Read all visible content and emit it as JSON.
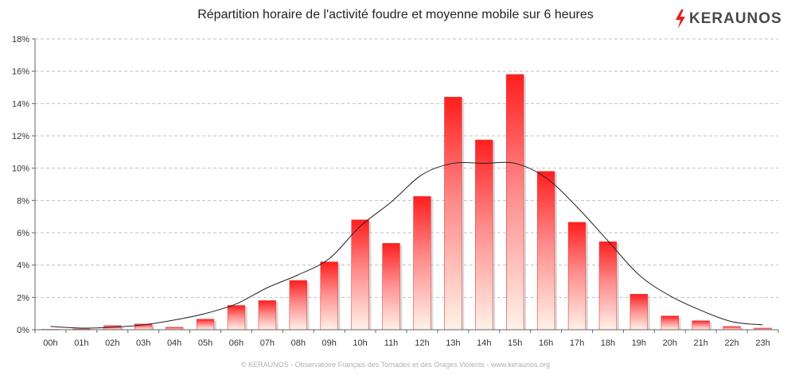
{
  "chart_data": {
    "type": "bar",
    "title": "Répartition horaire de l'activité foudre et moyenne mobile sur 6 heures",
    "categories": [
      "00h",
      "01h",
      "02h",
      "03h",
      "04h",
      "05h",
      "06h",
      "07h",
      "08h",
      "09h",
      "10h",
      "11h",
      "12h",
      "13h",
      "14h",
      "15h",
      "16h",
      "17h",
      "18h",
      "19h",
      "20h",
      "21h",
      "22h",
      "23h"
    ],
    "series": [
      {
        "type": "bar",
        "values": [
          0.02,
          0.05,
          0.25,
          0.35,
          0.15,
          0.65,
          1.5,
          1.8,
          3.05,
          4.2,
          6.8,
          5.35,
          8.25,
          14.4,
          11.75,
          15.8,
          9.8,
          6.65,
          5.45,
          2.2,
          0.85,
          0.55,
          0.2,
          0.1
        ]
      },
      {
        "type": "line",
        "values": [
          0.2,
          0.1,
          0.15,
          0.3,
          0.6,
          1.0,
          1.6,
          2.6,
          3.4,
          4.4,
          6.4,
          7.9,
          9.6,
          10.3,
          10.3,
          10.3,
          9.4,
          7.6,
          5.5,
          3.4,
          2.1,
          1.2,
          0.5,
          0.3
        ]
      }
    ],
    "ylim": [
      0,
      18
    ],
    "yticks": [
      "0%",
      "2%",
      "4%",
      "6%",
      "8%",
      "10%",
      "12%",
      "14%",
      "16%",
      "18%"
    ],
    "ytick_values": [
      0,
      2,
      4,
      6,
      8,
      10,
      12,
      14,
      16,
      18
    ],
    "grid": true,
    "colors": {
      "bar_top": "#ff1e1e",
      "bar_bottom": "#fff2e8",
      "line": "#222222"
    }
  },
  "logo": {
    "text": "KERAUNOS",
    "icon": "lightning-bolt-icon"
  },
  "footer": "© KERAUNOS - Observatoire Français des Tornades et des Orages Violents - www.keraunos.org"
}
